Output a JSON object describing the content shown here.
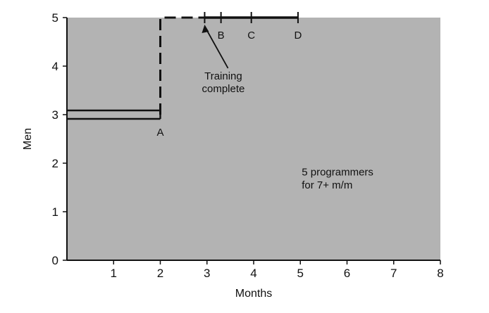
{
  "chart_data": {
    "type": "line",
    "title": "",
    "xlabel": "Months",
    "ylabel": "Men",
    "xlim": [
      0,
      8
    ],
    "ylim": [
      0,
      5
    ],
    "x_ticks": [
      1,
      2,
      3,
      4,
      5,
      6,
      7,
      8
    ],
    "y_ticks": [
      0,
      1,
      2,
      3,
      4,
      5
    ],
    "grid": false,
    "background": "#b3b3b3",
    "series": [
      {
        "style": "double-solid",
        "color": "#111111",
        "points": [
          [
            0,
            3
          ],
          [
            2,
            3
          ]
        ]
      },
      {
        "style": "dashed",
        "color": "#111111",
        "points": [
          [
            2,
            3
          ],
          [
            2,
            5
          ],
          [
            2.95,
            5
          ]
        ]
      },
      {
        "style": "solid",
        "color": "#111111",
        "points": [
          [
            2.95,
            5
          ],
          [
            4.95,
            5
          ]
        ]
      }
    ],
    "point_labels": [
      {
        "label": "A",
        "x": 2.0,
        "y": 3
      },
      {
        "label": "B",
        "x": 3.3,
        "y": 5
      },
      {
        "label": "C",
        "x": 3.95,
        "y": 5
      },
      {
        "label": "D",
        "x": 4.95,
        "y": 5
      }
    ],
    "tick_marks_on_series": [
      2.95,
      3.3,
      3.95,
      4.95
    ],
    "annotations": [
      {
        "lines": [
          "Training",
          "complete"
        ],
        "arrow_to": [
          2.95,
          5
        ]
      },
      {
        "lines": [
          "5 programmers",
          "for 7+ m/m"
        ]
      }
    ]
  }
}
